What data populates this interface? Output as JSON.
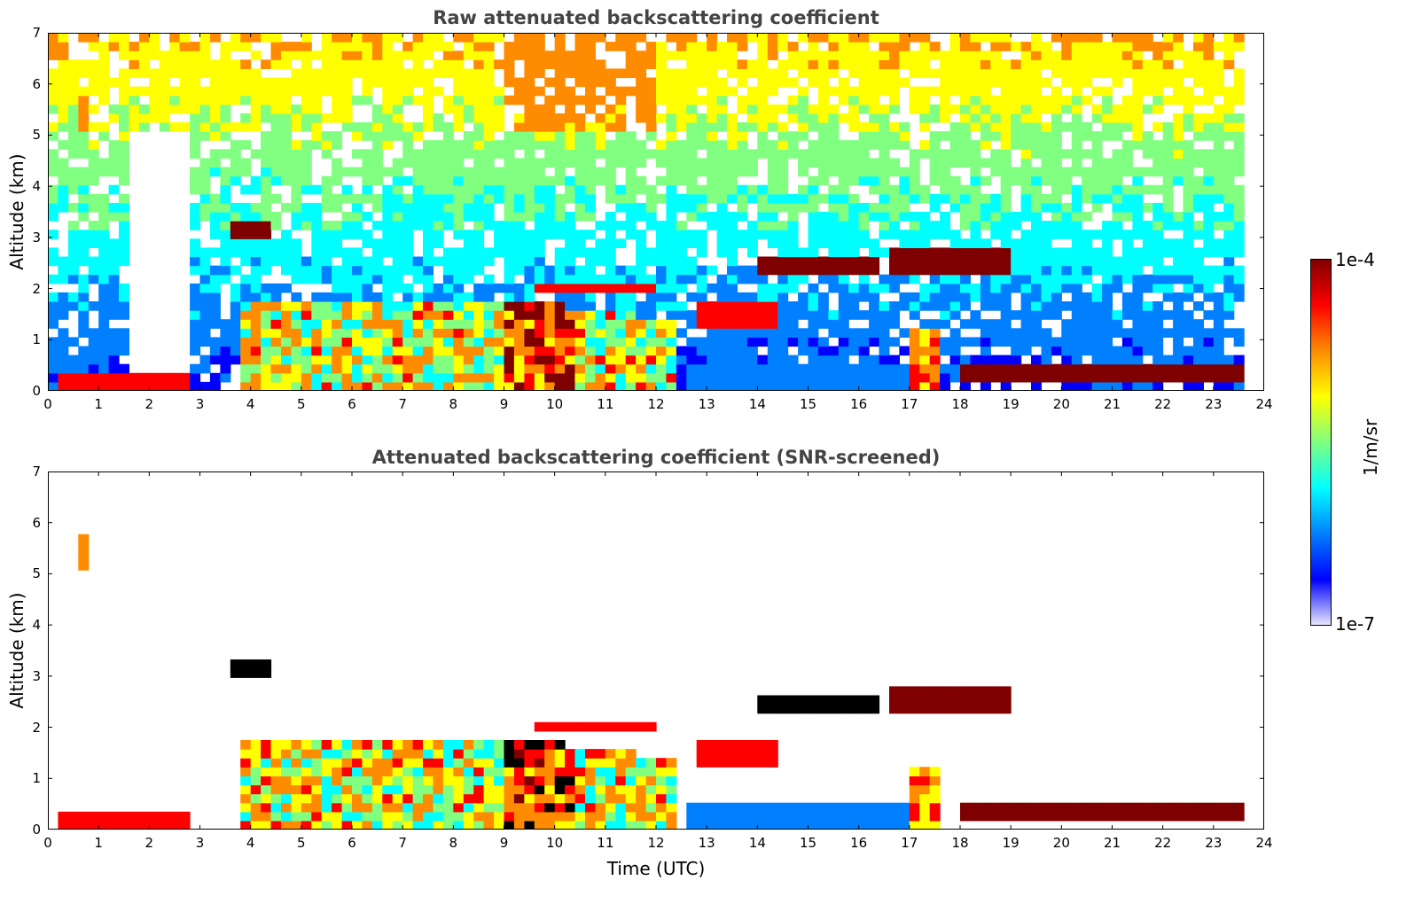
{
  "chart_data": [
    {
      "type": "heatmap",
      "title": "Raw attenuated backscattering coefficient",
      "ylabel": "Altitude (km)",
      "xlabel": "",
      "xlim": [
        0,
        24
      ],
      "ylim": [
        0,
        7
      ],
      "x_ticks": [
        "0",
        "1",
        "2",
        "3",
        "4",
        "5",
        "6",
        "7",
        "8",
        "9",
        "10",
        "11",
        "12",
        "13",
        "14",
        "15",
        "16",
        "17",
        "18",
        "19",
        "20",
        "21",
        "22",
        "23",
        "24"
      ],
      "y_ticks": [
        "0",
        "1",
        "2",
        "3",
        "4",
        "5",
        "6",
        "7"
      ],
      "features": [
        {
          "name": "boundary-layer-aerosol",
          "t0": 3.7,
          "t1": 12.5,
          "alt0": 0,
          "alt1": 1.8,
          "level": 0.8
        },
        {
          "name": "cloud-layer-1",
          "t0": 14.0,
          "t1": 16.5,
          "alt0": 2.2,
          "alt1": 2.6,
          "level": 1.0
        },
        {
          "name": "cloud-layer-2",
          "t0": 3.6,
          "t1": 4.4,
          "alt0": 3.0,
          "alt1": 3.2,
          "level": 1.0
        },
        {
          "name": "surface-layer",
          "t0": 18.0,
          "t1": 23.7,
          "alt0": 0.2,
          "alt1": 0.4,
          "level": 1.0
        }
      ]
    },
    {
      "type": "heatmap",
      "title": "Attenuated backscattering coefficient (SNR-screened)",
      "ylabel": "Altitude (km)",
      "xlabel": "Time (UTC)",
      "xlim": [
        0,
        24
      ],
      "ylim": [
        0,
        7
      ],
      "x_ticks": [
        "0",
        "1",
        "2",
        "3",
        "4",
        "5",
        "6",
        "7",
        "8",
        "9",
        "10",
        "11",
        "12",
        "13",
        "14",
        "15",
        "16",
        "17",
        "18",
        "19",
        "20",
        "21",
        "22",
        "23",
        "24"
      ],
      "y_ticks": [
        "0",
        "1",
        "2",
        "3",
        "4",
        "5",
        "6",
        "7"
      ]
    }
  ],
  "colorbar": {
    "max_label": "1e-4",
    "min_label": "1e-7",
    "unit": "1/m/sr",
    "colors": [
      "#7f0000",
      "#ff0000",
      "#ff8c00",
      "#ffff00",
      "#80ff80",
      "#00ffff",
      "#0080ff",
      "#0000ff",
      "#e8e8ff"
    ]
  }
}
